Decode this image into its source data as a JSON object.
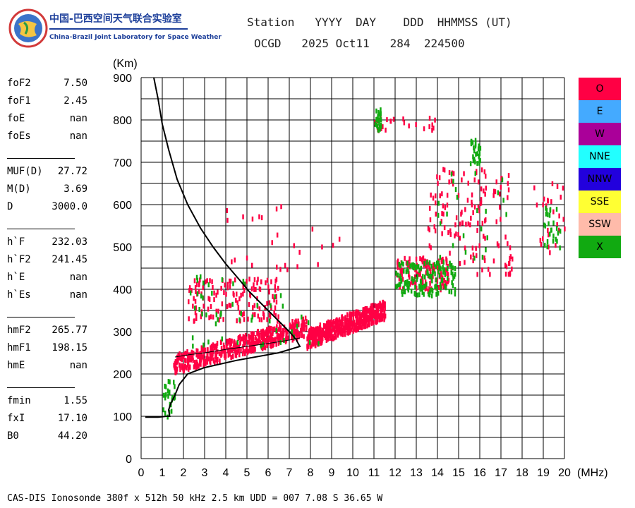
{
  "logo": {
    "cn_name": "中国-巴西空间天气联合实验室",
    "en_name": "China-Brazil Joint Laboratory for Space Weather"
  },
  "header": {
    "labels_line": "Station   YYYY  DAY    DDD  HHMMSS (UT)",
    "values_line": "OCGD   2025 Oct11   284  224500"
  },
  "parameters": {
    "group1": [
      {
        "name": "foF2",
        "value": "7.50"
      },
      {
        "name": "foF1",
        "value": "2.45"
      },
      {
        "name": "foE",
        "value": "nan"
      },
      {
        "name": "foEs",
        "value": "nan"
      }
    ],
    "group2": [
      {
        "name": "MUF(D)",
        "value": "27.72"
      },
      {
        "name": "M(D)",
        "value": "3.69"
      },
      {
        "name": "D",
        "value": "3000.0"
      }
    ],
    "group3": [
      {
        "name": "h`F",
        "value": "232.03"
      },
      {
        "name": "h`F2",
        "value": "241.45"
      },
      {
        "name": "h`E",
        "value": "nan"
      },
      {
        "name": "h`Es",
        "value": "nan"
      }
    ],
    "group4": [
      {
        "name": "hmF2",
        "value": "265.77"
      },
      {
        "name": "hmF1",
        "value": "198.15"
      },
      {
        "name": "hmE",
        "value": "nan"
      }
    ],
    "group5": [
      {
        "name": "fmin",
        "value": "1.55"
      },
      {
        "name": "fxI",
        "value": "17.10"
      },
      {
        "name": "B0",
        "value": "44.20"
      }
    ]
  },
  "legend": [
    {
      "label": "O",
      "color": "#ff0044"
    },
    {
      "label": "E",
      "color": "#44aaff"
    },
    {
      "label": "W",
      "color": "#aa0099"
    },
    {
      "label": "NNE",
      "color": "#22ffff"
    },
    {
      "label": "NNW",
      "color": "#2200dd"
    },
    {
      "label": "SSE",
      "color": "#ffff33"
    },
    {
      "label": "SSW",
      "color": "#ffbbaa"
    },
    {
      "label": "X",
      "color": "#11aa11"
    }
  ],
  "footer": "CAS-DIS Ionosonde 380f x 512h 50 kHz 2.5 km UDD = 007 7.08 S 36.65 W",
  "chart_data": {
    "type": "scatter",
    "title": "",
    "xlabel": "(MHz)",
    "ylabel": "(Km)",
    "xlim": [
      0,
      20
    ],
    "ylim": [
      0,
      900
    ],
    "xticks": [
      0,
      1,
      2,
      3,
      4,
      5,
      6,
      7,
      8,
      9,
      10,
      11,
      12,
      13,
      14,
      15,
      16,
      17,
      18,
      19,
      20
    ],
    "yticks": [
      0,
      100,
      200,
      300,
      400,
      500,
      600,
      700,
      800,
      900
    ],
    "grid": true,
    "legend_position": "right",
    "series": [
      {
        "name": "O",
        "color": "#ff0044",
        "clusters": [
          {
            "x": [
              1.5,
              7.8
            ],
            "y": [
              230,
              320
            ],
            "density": "dense"
          },
          {
            "x": [
              7.8,
              11.5
            ],
            "y": [
              290,
              360
            ],
            "density": "dense"
          },
          {
            "x": [
              2.2,
              6.5
            ],
            "y": [
              330,
              430
            ],
            "density": "medium"
          },
          {
            "x": [
              12.0,
              14.5
            ],
            "y": [
              400,
              480
            ],
            "density": "medium"
          },
          {
            "x": [
              13.5,
              17.5
            ],
            "y": [
              440,
              690
            ],
            "density": "medium"
          },
          {
            "x": [
              3.0,
              9.5
            ],
            "y": [
              450,
              610
            ],
            "density": "sparse"
          },
          {
            "x": [
              18.5,
              20.0
            ],
            "y": [
              490,
              660
            ],
            "density": "sparse"
          },
          {
            "x": [
              11.0,
              14.0
            ],
            "y": [
              780,
              810
            ],
            "density": "sparse"
          }
        ]
      },
      {
        "name": "X",
        "color": "#11aa11",
        "clusters": [
          {
            "x": [
              1.8,
              8.5
            ],
            "y": [
              260,
              350
            ],
            "density": "sparse"
          },
          {
            "x": [
              2.0,
              6.8
            ],
            "y": [
              330,
              440
            ],
            "density": "sparse"
          },
          {
            "x": [
              12.0,
              14.8
            ],
            "y": [
              390,
              470
            ],
            "density": "medium"
          },
          {
            "x": [
              13.8,
              17.5
            ],
            "y": [
              440,
              680
            ],
            "density": "sparse"
          },
          {
            "x": [
              15.5,
              16.0
            ],
            "y": [
              700,
              760
            ],
            "density": "sparse"
          },
          {
            "x": [
              11.0,
              11.3
            ],
            "y": [
              780,
              830
            ],
            "density": "sparse"
          },
          {
            "x": [
              1.0,
              1.6
            ],
            "y": [
              90,
              190
            ],
            "density": "sparse"
          },
          {
            "x": [
              19.0,
              19.8
            ],
            "y": [
              500,
              600
            ],
            "density": "sparse"
          }
        ]
      }
    ],
    "profile_curve": {
      "name": "electron density profile",
      "x": [
        0.6,
        0.8,
        1.0,
        1.3,
        1.7,
        2.2,
        2.8,
        3.4,
        4.0,
        4.6,
        5.1,
        5.6,
        6.1,
        6.6,
        7.0,
        7.3,
        7.5,
        6.5,
        4.5,
        3.0,
        2.2,
        1.8,
        1.6,
        1.4,
        1.3,
        1.35,
        1.2,
        0.8,
        0.2
      ],
      "y": [
        900,
        850,
        790,
        730,
        660,
        600,
        545,
        500,
        460,
        425,
        395,
        370,
        345,
        320,
        300,
        283,
        265,
        250,
        232,
        215,
        200,
        175,
        150,
        130,
        115,
        100,
        100,
        98,
        98
      ]
    },
    "trace_line": {
      "x": [
        1.6,
        2.2,
        3.0,
        4.0,
        5.0,
        6.0,
        7.0,
        7.5
      ],
      "y": [
        240,
        245,
        250,
        258,
        265,
        272,
        280,
        285
      ]
    }
  }
}
